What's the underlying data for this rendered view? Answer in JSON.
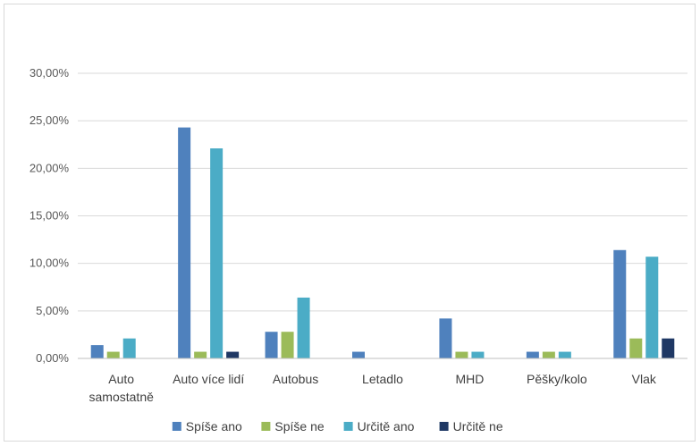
{
  "chart_data": {
    "type": "bar",
    "title": "",
    "xlabel": "",
    "ylabel": "",
    "ylim": [
      0,
      30
    ],
    "yticks": [
      0,
      5,
      10,
      15,
      20,
      25,
      30
    ],
    "ytick_labels": [
      "0,00%",
      "5,00%",
      "10,00%",
      "15,00%",
      "20,00%",
      "25,00%",
      "30,00%"
    ],
    "grid": true,
    "legend_position": "bottom",
    "categories": [
      [
        "Auto",
        "samostatně"
      ],
      [
        "Auto více lidí"
      ],
      [
        "Autobus"
      ],
      [
        "Letadlo"
      ],
      [
        "MHD"
      ],
      [
        "Pěšky/kolo"
      ],
      [
        "Vlak"
      ]
    ],
    "series": [
      {
        "name": "Spíše ano",
        "color": "#4f81bd",
        "values": [
          1.4,
          24.3,
          2.8,
          0.7,
          4.2,
          0.7,
          11.4
        ]
      },
      {
        "name": "Spíše ne",
        "color": "#9bbb59",
        "values": [
          0.7,
          0.7,
          2.8,
          0,
          0.7,
          0.7,
          2.1
        ]
      },
      {
        "name": "Určitě ano",
        "color": "#4bacc6",
        "values": [
          2.1,
          22.1,
          6.4,
          0,
          0.7,
          0.7,
          10.7
        ]
      },
      {
        "name": "Určitě ne",
        "color": "#1f3864",
        "values": [
          0,
          0.7,
          0,
          0,
          0,
          0,
          2.1
        ]
      }
    ]
  }
}
